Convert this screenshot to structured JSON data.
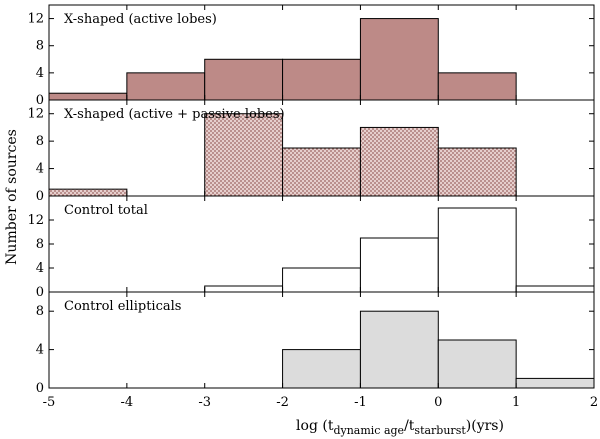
{
  "chart_data": {
    "type": "bar",
    "xlabel": {
      "prefix": "log (t",
      "sub1": "dynamic age",
      "mid": "/t",
      "sub2": "starburst",
      "suffix": ")(yrs)"
    },
    "ylabel": "Number of sources",
    "x_range": [
      -5,
      2
    ],
    "x_ticks": [
      "-5",
      "-4",
      "-3",
      "-2",
      "-1",
      "0",
      "1",
      "2"
    ],
    "bins": [
      [
        -5,
        -4
      ],
      [
        -4,
        -3
      ],
      [
        -3,
        -2
      ],
      [
        -2,
        -1
      ],
      [
        -1,
        0
      ],
      [
        0,
        1
      ],
      [
        1,
        2
      ]
    ],
    "panels": [
      {
        "title": "X-shaped (active lobes)",
        "fill": "#bd8a87",
        "pattern": "solid",
        "ylim": [
          0,
          14
        ],
        "yticks": [
          "0",
          "4",
          "8",
          "12"
        ],
        "values": [
          1,
          4,
          6,
          6,
          12,
          4,
          0
        ]
      },
      {
        "title": "X-shaped (active + passive lobes)",
        "fill": "#bd8a87",
        "pattern": "dotted",
        "ylim": [
          0,
          14
        ],
        "yticks": [
          "0",
          "4",
          "8",
          "12"
        ],
        "values": [
          1,
          0,
          12,
          7,
          10,
          7,
          0
        ]
      },
      {
        "title": "Control total",
        "fill": "#ffffff",
        "pattern": "solid",
        "ylim": [
          0,
          16
        ],
        "yticks": [
          "0",
          "4",
          "8",
          "12"
        ],
        "values": [
          0,
          0,
          1,
          4,
          9,
          14,
          1
        ]
      },
      {
        "title": "Control ellipticals",
        "fill": "#dcdcdc",
        "pattern": "solid",
        "ylim": [
          0,
          10
        ],
        "yticks": [
          "0",
          "4",
          "8"
        ],
        "values": [
          0,
          0,
          0,
          4,
          8,
          5,
          1
        ]
      }
    ]
  }
}
